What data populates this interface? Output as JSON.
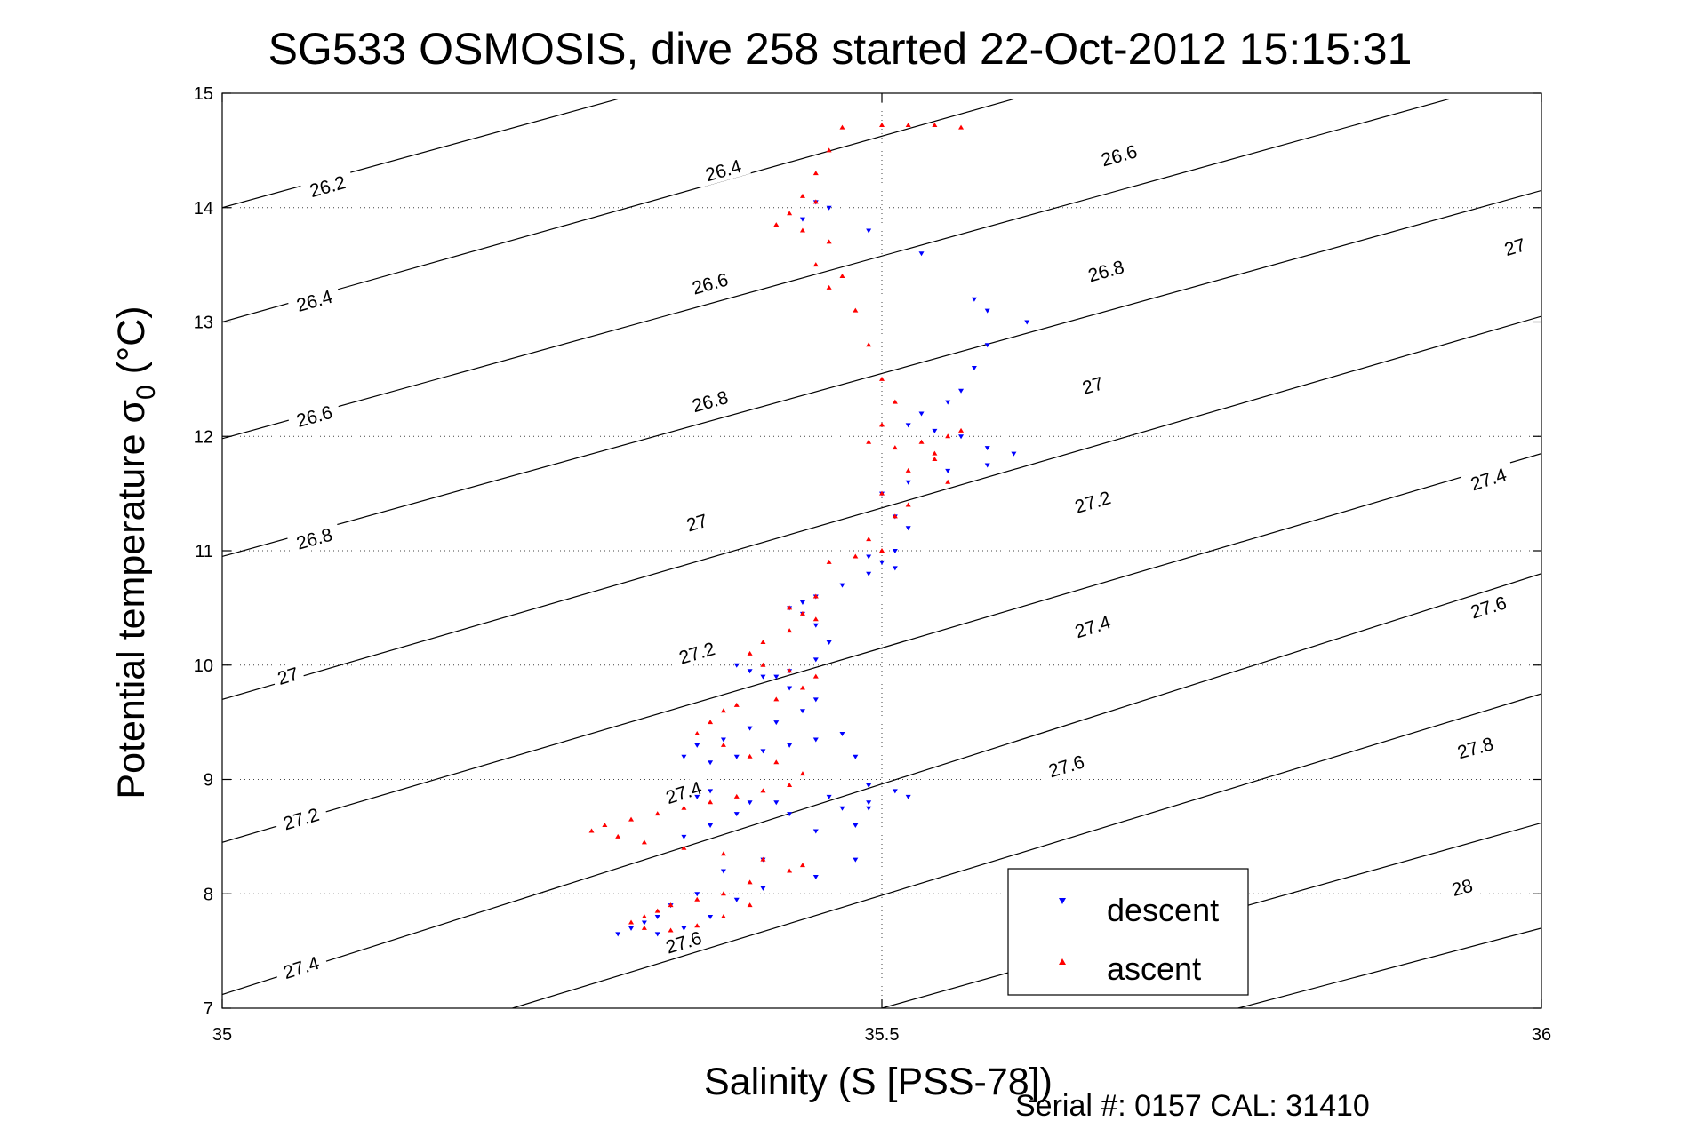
{
  "chart_data": {
    "type": "scatter",
    "title": "SG533 OSMOSIS, dive 258 started 22-Oct-2012 15:15:31",
    "xlabel": "Salinity (S [PSS-78])",
    "ylabel": "Potential temperature σ",
    "ylabel_sub": "0",
    "ylabel_unit": "(°C)",
    "xlim": [
      35,
      36
    ],
    "ylim": [
      7,
      15
    ],
    "xticks": [
      35,
      35.5,
      36
    ],
    "xtick_labels": [
      "35",
      "35.5",
      "36"
    ],
    "yticks": [
      7,
      8,
      9,
      10,
      11,
      12,
      13,
      14,
      15
    ],
    "ytick_labels": [
      "7",
      "8",
      "9",
      "10",
      "11",
      "12",
      "13",
      "14",
      "15"
    ],
    "grid": true,
    "legend_position": "bottom-right",
    "footer_text": "Serial #: 0157  CAL: 31410",
    "contours": [
      {
        "line": [
          [
            35.0,
            14.0
          ],
          [
            35.3,
            14.95
          ]
        ],
        "labels": [
          {
            "text": "26.2",
            "x": 35.08,
            "y": 14.18
          }
        ]
      },
      {
        "line": [
          [
            35.0,
            13.0
          ],
          [
            35.6,
            14.95
          ]
        ],
        "labels": [
          {
            "text": "26.4",
            "x": 35.07,
            "y": 13.18
          },
          {
            "text": "26.4",
            "x": 35.38,
            "y": 14.32
          }
        ]
      },
      {
        "line": [
          [
            35.0,
            11.98
          ],
          [
            35.93,
            14.95
          ]
        ],
        "labels": [
          {
            "text": "26.6",
            "x": 35.07,
            "y": 12.17
          },
          {
            "text": "26.6",
            "x": 35.37,
            "y": 13.33
          },
          {
            "text": "26.6",
            "x": 35.68,
            "y": 14.45
          }
        ]
      },
      {
        "line": [
          [
            35.0,
            10.95
          ],
          [
            36.0,
            14.15
          ]
        ],
        "labels": [
          {
            "text": "26.8",
            "x": 35.07,
            "y": 11.1
          },
          {
            "text": "26.8",
            "x": 35.37,
            "y": 12.3
          },
          {
            "text": "26.8",
            "x": 35.67,
            "y": 13.44
          }
        ]
      },
      {
        "line": [
          [
            35.0,
            9.7
          ],
          [
            36.0,
            13.05
          ]
        ],
        "labels": [
          {
            "text": "27",
            "x": 35.05,
            "y": 9.9
          },
          {
            "text": "27",
            "x": 35.36,
            "y": 11.24
          },
          {
            "text": "27",
            "x": 35.66,
            "y": 12.44
          },
          {
            "text": "27",
            "x": 35.98,
            "y": 13.65
          }
        ]
      },
      {
        "line": [
          [
            35.0,
            8.45
          ],
          [
            36.0,
            11.85
          ]
        ],
        "labels": [
          {
            "text": "27.2",
            "x": 35.06,
            "y": 8.65
          },
          {
            "text": "27.2",
            "x": 35.36,
            "y": 10.1
          },
          {
            "text": "27.2",
            "x": 35.66,
            "y": 11.42
          }
        ]
      },
      {
        "line": [
          [
            35.0,
            7.12
          ],
          [
            36.0,
            10.8
          ]
        ],
        "labels": [
          {
            "text": "27.4",
            "x": 35.06,
            "y": 7.35
          },
          {
            "text": "27.4",
            "x": 35.35,
            "y": 8.88
          },
          {
            "text": "27.4",
            "x": 35.66,
            "y": 10.33
          },
          {
            "text": "27.4",
            "x": 35.96,
            "y": 11.62
          }
        ]
      },
      {
        "line": [
          [
            35.22,
            7.0
          ],
          [
            36.0,
            9.75
          ]
        ],
        "labels": [
          {
            "text": "27.6",
            "x": 35.35,
            "y": 7.57
          },
          {
            "text": "27.6",
            "x": 35.64,
            "y": 9.11
          },
          {
            "text": "27.6",
            "x": 35.96,
            "y": 10.5
          }
        ]
      },
      {
        "line": [
          [
            35.5,
            7.0
          ],
          [
            36.0,
            8.62
          ]
        ],
        "labels": [
          {
            "text": "27.8",
            "x": 35.95,
            "y": 9.27
          }
        ]
      },
      {
        "line": [
          [
            35.77,
            7.0
          ],
          [
            36.0,
            7.7
          ]
        ],
        "labels": [
          {
            "text": "28",
            "x": 35.94,
            "y": 8.05
          }
        ]
      }
    ],
    "series": [
      {
        "name": "descent",
        "color": "#0000ff",
        "marker": "triangle-down",
        "x": [
          35.45,
          35.46,
          35.44,
          35.49,
          35.53,
          35.57,
          35.58,
          35.61,
          35.58,
          35.57,
          35.56,
          35.55,
          35.53,
          35.52,
          35.54,
          35.56,
          35.58,
          35.6,
          35.58,
          35.55,
          35.52,
          35.5,
          35.51,
          35.52,
          35.51,
          35.49,
          35.5,
          35.51,
          35.49,
          35.47,
          35.45,
          35.44,
          35.43,
          35.44,
          35.45,
          35.46,
          35.45,
          35.43,
          35.42,
          35.4,
          35.39,
          35.41,
          35.43,
          35.45,
          35.44,
          35.42,
          35.4,
          35.38,
          35.36,
          35.35,
          35.37,
          35.39,
          35.41,
          35.43,
          35.45,
          35.47,
          35.48,
          35.49,
          35.51,
          35.52,
          35.49,
          35.47,
          35.43,
          35.4,
          35.37,
          35.36,
          35.35,
          35.37,
          35.39,
          35.42,
          35.46,
          35.49,
          35.48,
          35.45,
          35.41,
          35.38,
          35.36,
          35.34,
          35.33,
          35.32,
          35.31,
          35.33,
          35.35,
          35.37,
          35.39,
          35.41,
          35.45,
          35.48,
          35.3
        ],
        "y": [
          14.05,
          14.0,
          13.9,
          13.8,
          13.6,
          13.2,
          13.1,
          13.0,
          12.8,
          12.6,
          12.4,
          12.3,
          12.2,
          12.1,
          12.05,
          12.0,
          11.9,
          11.85,
          11.75,
          11.7,
          11.6,
          11.5,
          11.3,
          11.2,
          11.0,
          10.95,
          10.9,
          10.85,
          10.8,
          10.7,
          10.6,
          10.55,
          10.5,
          10.45,
          10.35,
          10.2,
          10.05,
          9.95,
          9.9,
          9.95,
          10.0,
          9.9,
          9.8,
          9.7,
          9.6,
          9.5,
          9.45,
          9.35,
          9.3,
          9.2,
          9.15,
          9.2,
          9.25,
          9.3,
          9.35,
          9.4,
          9.2,
          8.95,
          8.9,
          8.85,
          8.8,
          8.75,
          8.7,
          8.8,
          8.9,
          8.85,
          8.5,
          8.6,
          8.7,
          8.8,
          8.85,
          8.75,
          8.6,
          8.55,
          8.3,
          8.2,
          8.0,
          7.9,
          7.8,
          7.75,
          7.7,
          7.65,
          7.7,
          7.8,
          7.95,
          8.05,
          8.15,
          8.3,
          7.65
        ]
      },
      {
        "name": "ascent",
        "color": "#ff0000",
        "marker": "triangle-up",
        "x": [
          35.47,
          35.5,
          35.52,
          35.54,
          35.56,
          35.46,
          35.45,
          35.44,
          35.45,
          35.43,
          35.42,
          35.44,
          35.46,
          35.45,
          35.47,
          35.46,
          35.48,
          35.49,
          35.5,
          35.51,
          35.5,
          35.49,
          35.51,
          35.53,
          35.55,
          35.56,
          35.54,
          35.52,
          35.5,
          35.52,
          35.55,
          35.54,
          35.51,
          35.49,
          35.5,
          35.48,
          35.46,
          35.45,
          35.43,
          35.44,
          35.45,
          35.43,
          35.41,
          35.4,
          35.41,
          35.43,
          35.45,
          35.44,
          35.42,
          35.39,
          35.38,
          35.37,
          35.36,
          35.38,
          35.4,
          35.42,
          35.44,
          35.43,
          35.41,
          35.39,
          35.37,
          35.35,
          35.33,
          35.31,
          35.29,
          35.28,
          35.3,
          35.32,
          35.35,
          35.38,
          35.41,
          35.44,
          35.43,
          35.4,
          35.38,
          35.36,
          35.34,
          35.33,
          35.32,
          35.31,
          35.32,
          35.34,
          35.36,
          35.38,
          35.4
        ],
        "y": [
          14.7,
          14.72,
          14.72,
          14.72,
          14.7,
          14.5,
          14.3,
          14.1,
          14.05,
          13.95,
          13.85,
          13.8,
          13.7,
          13.5,
          13.4,
          13.3,
          13.1,
          12.8,
          12.5,
          12.3,
          12.1,
          11.95,
          11.9,
          11.95,
          12.0,
          12.05,
          11.85,
          11.7,
          11.5,
          11.4,
          11.6,
          11.8,
          11.3,
          11.1,
          11.0,
          10.95,
          10.9,
          10.6,
          10.5,
          10.45,
          10.4,
          10.3,
          10.2,
          10.1,
          10.0,
          9.95,
          9.9,
          9.8,
          9.7,
          9.65,
          9.6,
          9.5,
          9.4,
          9.3,
          9.2,
          9.15,
          9.05,
          8.95,
          8.9,
          8.85,
          8.8,
          8.75,
          8.7,
          8.65,
          8.6,
          8.55,
          8.5,
          8.45,
          8.4,
          8.35,
          8.3,
          8.25,
          8.2,
          8.1,
          8.0,
          7.95,
          7.9,
          7.85,
          7.8,
          7.75,
          7.7,
          7.68,
          7.72,
          7.8,
          7.9
        ]
      }
    ]
  }
}
